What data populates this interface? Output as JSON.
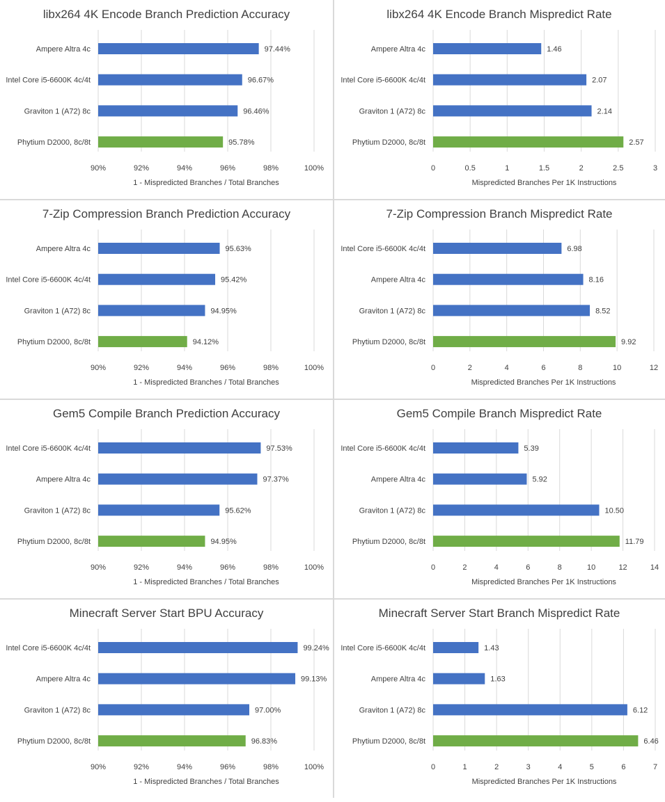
{
  "colors": {
    "primary_bar": "#4472c4",
    "highlight_bar": "#70ad47",
    "gridline": "#d9d9d9",
    "text": "#404040"
  },
  "chart_data": [
    {
      "type": "bar",
      "orientation": "horizontal",
      "title": "libx264 4K Encode Branch Prediction Accuracy",
      "xlabel": "1 - Mispredicted Branches / Total Branches",
      "categories": [
        "Ampere Altra 4c",
        "Intel Core i5-6600K 4c/4t",
        "Graviton 1 (A72) 8c",
        "Phytium D2000, 8c/8t"
      ],
      "values": [
        97.44,
        96.67,
        96.46,
        95.78
      ],
      "value_labels": [
        "97.44%",
        "96.67%",
        "96.46%",
        "95.78%"
      ],
      "xlim": [
        90,
        100
      ],
      "ticks": [
        90,
        92,
        94,
        96,
        98,
        100
      ],
      "tick_labels": [
        "90%",
        "92%",
        "94%",
        "96%",
        "98%",
        "100%"
      ],
      "highlight": "Phytium D2000, 8c/8t",
      "grid": true
    },
    {
      "type": "bar",
      "orientation": "horizontal",
      "title": "libx264 4K Encode Branch Mispredict Rate",
      "xlabel": "Mispredicted Branches Per 1K Instructions",
      "categories": [
        "Ampere Altra 4c",
        "Intel Core i5-6600K 4c/4t",
        "Graviton 1 (A72) 8c",
        "Phytium D2000, 8c/8t"
      ],
      "values": [
        1.46,
        2.07,
        2.14,
        2.57
      ],
      "value_labels": [
        "1.46",
        "2.07",
        "2.14",
        "2.57"
      ],
      "xlim": [
        0,
        3
      ],
      "ticks": [
        0,
        0.5,
        1,
        1.5,
        2,
        2.5,
        3
      ],
      "tick_labels": [
        "0",
        "0.5",
        "1",
        "1.5",
        "2",
        "2.5",
        "3"
      ],
      "highlight": "Phytium D2000, 8c/8t",
      "grid": true
    },
    {
      "type": "bar",
      "orientation": "horizontal",
      "title": "7-Zip Compression Branch Prediction Accuracy",
      "xlabel": "1 - Mispredicted Branches / Total Branches",
      "categories": [
        "Ampere Altra 4c",
        "Intel Core i5-6600K 4c/4t",
        "Graviton 1 (A72) 8c",
        "Phytium D2000, 8c/8t"
      ],
      "values": [
        95.63,
        95.42,
        94.95,
        94.12
      ],
      "value_labels": [
        "95.63%",
        "95.42%",
        "94.95%",
        "94.12%"
      ],
      "xlim": [
        90,
        100
      ],
      "ticks": [
        90,
        92,
        94,
        96,
        98,
        100
      ],
      "tick_labels": [
        "90%",
        "92%",
        "94%",
        "96%",
        "98%",
        "100%"
      ],
      "highlight": "Phytium D2000, 8c/8t",
      "grid": true
    },
    {
      "type": "bar",
      "orientation": "horizontal",
      "title": "7-Zip Compression Branch Mispredict Rate",
      "xlabel": "Mispredicted Branches Per 1K Instructions",
      "categories": [
        "Intel Core i5-6600K 4c/4t",
        "Ampere Altra 4c",
        "Graviton 1 (A72) 8c",
        "Phytium D2000, 8c/8t"
      ],
      "values": [
        6.98,
        8.16,
        8.52,
        9.92
      ],
      "value_labels": [
        "6.98",
        "8.16",
        "8.52",
        "9.92"
      ],
      "xlim": [
        0,
        12
      ],
      "ticks": [
        0,
        2,
        4,
        6,
        8,
        10,
        12
      ],
      "tick_labels": [
        "0",
        "2",
        "4",
        "6",
        "8",
        "10",
        "12"
      ],
      "highlight": "Phytium D2000, 8c/8t",
      "grid": true
    },
    {
      "type": "bar",
      "orientation": "horizontal",
      "title": "Gem5 Compile Branch Prediction Accuracy",
      "xlabel": "1 - Mispredicted Branches / Total Branches",
      "categories": [
        "Intel Core i5-6600K 4c/4t",
        "Ampere Altra 4c",
        "Graviton 1 (A72) 8c",
        "Phytium D2000, 8c/8t"
      ],
      "values": [
        97.53,
        97.37,
        95.62,
        94.95
      ],
      "value_labels": [
        "97.53%",
        "97.37%",
        "95.62%",
        "94.95%"
      ],
      "xlim": [
        90,
        100
      ],
      "ticks": [
        90,
        92,
        94,
        96,
        98,
        100
      ],
      "tick_labels": [
        "90%",
        "92%",
        "94%",
        "96%",
        "98%",
        "100%"
      ],
      "highlight": "Phytium D2000, 8c/8t",
      "grid": true
    },
    {
      "type": "bar",
      "orientation": "horizontal",
      "title": "Gem5 Compile Branch Mispredict Rate",
      "xlabel": "Mispredicted Branches Per 1K Instructions",
      "categories": [
        "Intel Core i5-6600K 4c/4t",
        "Ampere Altra 4c",
        "Graviton 1 (A72) 8c",
        "Phytium D2000, 8c/8t"
      ],
      "values": [
        5.39,
        5.92,
        10.5,
        11.79
      ],
      "value_labels": [
        "5.39",
        "5.92",
        "10.50",
        "11.79"
      ],
      "xlim": [
        0,
        14
      ],
      "ticks": [
        0,
        2,
        4,
        6,
        8,
        10,
        12,
        14
      ],
      "tick_labels": [
        "0",
        "2",
        "4",
        "6",
        "8",
        "10",
        "12",
        "14"
      ],
      "highlight": "Phytium D2000, 8c/8t",
      "grid": true
    },
    {
      "type": "bar",
      "orientation": "horizontal",
      "title": "Minecraft Server Start BPU Accuracy",
      "xlabel": "1 - Mispredicted Branches / Total Branches",
      "categories": [
        "Intel Core i5-6600K 4c/4t",
        "Ampere Altra 4c",
        "Graviton 1 (A72) 8c",
        "Phytium D2000, 8c/8t"
      ],
      "values": [
        99.24,
        99.13,
        97.0,
        96.83
      ],
      "value_labels": [
        "99.24%",
        "99.13%",
        "97.00%",
        "96.83%"
      ],
      "xlim": [
        90,
        100
      ],
      "ticks": [
        90,
        92,
        94,
        96,
        98,
        100
      ],
      "tick_labels": [
        "90%",
        "92%",
        "94%",
        "96%",
        "98%",
        "100%"
      ],
      "highlight": "Phytium D2000, 8c/8t",
      "grid": true
    },
    {
      "type": "bar",
      "orientation": "horizontal",
      "title": "Minecraft Server Start Branch Mispredict Rate",
      "xlabel": "Mispredicted Branches Per 1K Instructions",
      "categories": [
        "Intel Core i5-6600K 4c/4t",
        "Ampere Altra 4c",
        "Graviton 1 (A72) 8c",
        "Phytium D2000, 8c/8t"
      ],
      "values": [
        1.43,
        1.63,
        6.12,
        6.46
      ],
      "value_labels": [
        "1.43",
        "1.63",
        "6.12",
        "6.46"
      ],
      "xlim": [
        0,
        7
      ],
      "ticks": [
        0,
        1,
        2,
        3,
        4,
        5,
        6,
        7
      ],
      "tick_labels": [
        "0",
        "1",
        "2",
        "3",
        "4",
        "5",
        "6",
        "7"
      ],
      "highlight": "Phytium D2000, 8c/8t",
      "grid": true
    }
  ]
}
